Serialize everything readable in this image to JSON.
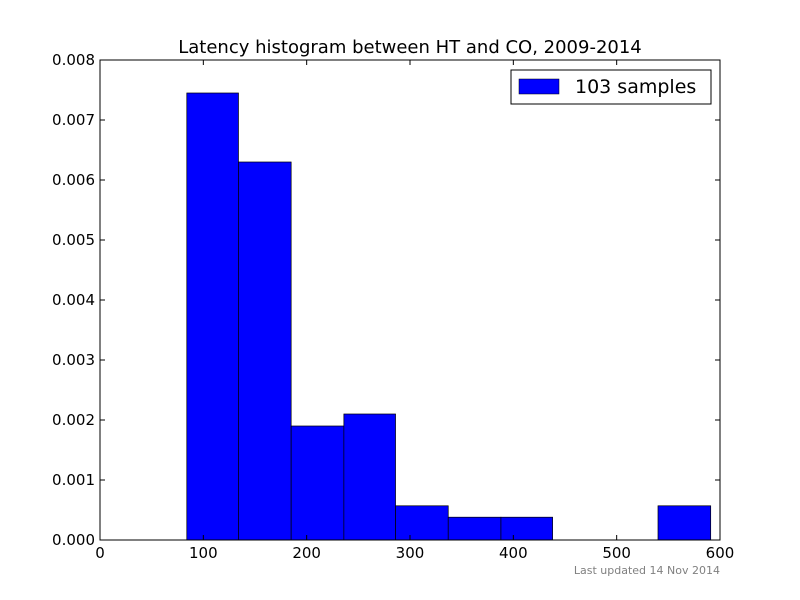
{
  "chart_data": {
    "type": "bar",
    "title": "Latency histogram between HT and CO, 2009-2014",
    "xlabel": "",
    "ylabel": "",
    "xlim": [
      0,
      600
    ],
    "ylim": [
      0,
      0.008
    ],
    "x_ticks": [
      {
        "value": 0,
        "label": "0"
      },
      {
        "value": 100,
        "label": "100"
      },
      {
        "value": 200,
        "label": "200"
      },
      {
        "value": 300,
        "label": "300"
      },
      {
        "value": 400,
        "label": "400"
      },
      {
        "value": 500,
        "label": "500"
      },
      {
        "value": 600,
        "label": "600"
      }
    ],
    "y_ticks": [
      {
        "value": 0,
        "label": "0.000"
      },
      {
        "value": 0.001,
        "label": "0.001"
      },
      {
        "value": 0.002,
        "label": "0.002"
      },
      {
        "value": 0.003,
        "label": "0.003"
      },
      {
        "value": 0.004,
        "label": "0.004"
      },
      {
        "value": 0.005,
        "label": "0.005"
      },
      {
        "value": 0.006,
        "label": "0.006"
      },
      {
        "value": 0.007,
        "label": "0.007"
      },
      {
        "value": 0.008,
        "label": "0.008"
      }
    ],
    "grid": false,
    "legend_position": "top-right",
    "series": [
      {
        "name": "103 samples",
        "color": "#0000ff",
        "bins": [
          {
            "x0": 84,
            "x1": 134,
            "value": 0.00745
          },
          {
            "x0": 134,
            "x1": 185,
            "value": 0.0063
          },
          {
            "x0": 185,
            "x1": 236,
            "value": 0.0019
          },
          {
            "x0": 236,
            "x1": 286,
            "value": 0.0021
          },
          {
            "x0": 286,
            "x1": 337,
            "value": 0.00057
          },
          {
            "x0": 337,
            "x1": 388,
            "value": 0.00038
          },
          {
            "x0": 388,
            "x1": 438,
            "value": 0.00038
          },
          {
            "x0": 438,
            "x1": 489,
            "value": 0
          },
          {
            "x0": 489,
            "x1": 540,
            "value": 0
          },
          {
            "x0": 540,
            "x1": 591,
            "value": 0.00057
          }
        ]
      }
    ]
  },
  "footer": {
    "updated_text": "Last updated 14 Nov 2014"
  }
}
